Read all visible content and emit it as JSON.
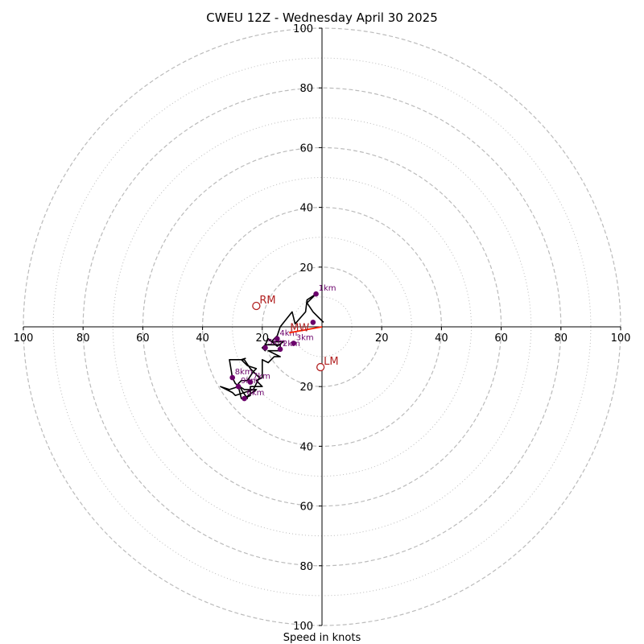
{
  "chart_data": {
    "type": "hodograph",
    "title": "CWEU 12Z - Wednesday April 30 2025",
    "xlabel": "Speed in knots",
    "range": [
      -100,
      100
    ],
    "rings_major": [
      20,
      40,
      60,
      80,
      100
    ],
    "rings_minor": [
      10,
      30,
      50,
      70,
      90
    ],
    "axis_ticks_x": [
      {
        "v": -100,
        "label": "100"
      },
      {
        "v": -80,
        "label": "80"
      },
      {
        "v": -60,
        "label": "60"
      },
      {
        "v": -40,
        "label": "40"
      },
      {
        "v": -20,
        "label": "20"
      },
      {
        "v": 20,
        "label": "20"
      },
      {
        "v": 40,
        "label": "40"
      },
      {
        "v": 60,
        "label": "60"
      },
      {
        "v": 80,
        "label": "80"
      },
      {
        "v": 100,
        "label": "100"
      }
    ],
    "axis_ticks_y": [
      {
        "v": 100,
        "label": "100"
      },
      {
        "v": 80,
        "label": "80"
      },
      {
        "v": 60,
        "label": "60"
      },
      {
        "v": 40,
        "label": "40"
      },
      {
        "v": 20,
        "label": "20"
      },
      {
        "v": -20,
        "label": "20"
      },
      {
        "v": -40,
        "label": "40"
      },
      {
        "v": -60,
        "label": "60"
      },
      {
        "v": -80,
        "label": "80"
      },
      {
        "v": -100,
        "label": "100"
      }
    ],
    "profile": [
      [
        0.5,
        1.5
      ],
      [
        -1.5,
        3.5
      ],
      [
        -3,
        5
      ],
      [
        -5,
        8
      ],
      [
        -2,
        11
      ],
      [
        -5,
        9
      ],
      [
        -5.5,
        5
      ],
      [
        -9,
        1
      ],
      [
        -10,
        5
      ],
      [
        -14,
        0
      ],
      [
        -15,
        -3
      ],
      [
        -17,
        -5
      ],
      [
        -13,
        -5
      ],
      [
        -15,
        -6.5
      ],
      [
        -18,
        -4
      ],
      [
        -19,
        -6
      ],
      [
        -20,
        -7
      ],
      [
        -19,
        -8
      ],
      [
        -19,
        -6
      ],
      [
        -17,
        -6
      ],
      [
        -14,
        -6
      ],
      [
        -14,
        -8
      ],
      [
        -18,
        -8
      ],
      [
        -14,
        -10
      ],
      [
        -16,
        -10
      ],
      [
        -18,
        -12
      ],
      [
        -20,
        -11
      ],
      [
        -20,
        -14
      ],
      [
        -20,
        -17
      ],
      [
        -22,
        -18
      ],
      [
        -20,
        -20
      ],
      [
        -21,
        -20
      ],
      [
        -24,
        -20
      ],
      [
        -24,
        -23
      ],
      [
        -26,
        -24
      ],
      [
        -22,
        -21
      ],
      [
        -26,
        -21
      ],
      [
        -29,
        -19
      ],
      [
        -30,
        -17
      ],
      [
        -31,
        -11
      ],
      [
        -30,
        -11
      ],
      [
        -26,
        -11
      ],
      [
        -24,
        -14
      ],
      [
        -21,
        -17
      ],
      [
        -23,
        -21
      ],
      [
        -26,
        -22
      ],
      [
        -29,
        -23
      ],
      [
        -30,
        -22
      ],
      [
        -34,
        -20
      ],
      [
        -31,
        -21
      ],
      [
        -28,
        -20
      ],
      [
        -27,
        -24
      ],
      [
        -25,
        -24
      ],
      [
        -27,
        -21
      ],
      [
        -28,
        -19
      ],
      [
        -27,
        -18
      ],
      [
        -25,
        -18
      ],
      [
        -23,
        -15
      ],
      [
        -22,
        -14
      ],
      [
        -25,
        -13
      ],
      [
        -27,
        -11
      ],
      [
        -25.5,
        -10.5
      ]
    ],
    "height_markers": [
      {
        "label": "1km",
        "u": -2,
        "v": 11
      },
      {
        "label": "",
        "u": -3,
        "v": 1.5
      },
      {
        "label": "3km",
        "u": -9.5,
        "v": -5.5
      },
      {
        "label": "2km",
        "u": -14,
        "v": -7.5
      },
      {
        "label": "4km",
        "u": -15,
        "v": -4
      },
      {
        "label": "5km",
        "u": -19,
        "v": -7
      },
      {
        "label": "6km",
        "u": -26,
        "v": -24
      },
      {
        "label": "7km",
        "u": -24,
        "v": -18.5
      },
      {
        "label": "8km",
        "u": -30,
        "v": -17
      },
      {
        "label": "9km",
        "u": -28,
        "v": -20
      }
    ],
    "storm_motion": {
      "rm": {
        "label": "RM",
        "u": -22,
        "v": 7
      },
      "lm": {
        "label": "LM",
        "u": -0.5,
        "v": -13.5
      },
      "mw": {
        "label": "MW",
        "u": -11,
        "v": -2
      }
    },
    "colors": {
      "ring": "#bbbbbb",
      "axis": "#000000",
      "profile": "#000000",
      "marker": "#6a006a",
      "motion": "#b22222",
      "mean_wind_arrow": "#ff2000"
    }
  }
}
